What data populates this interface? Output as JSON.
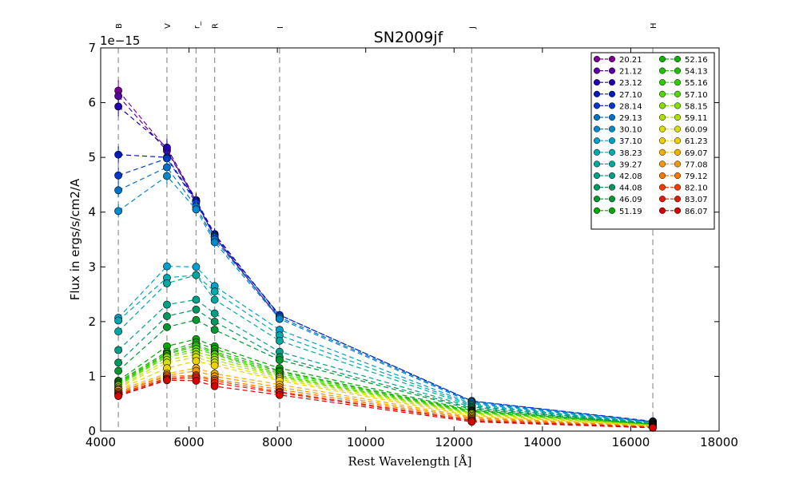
{
  "chart_data": {
    "type": "line",
    "title": "SN2009jf",
    "xlabel": "Rest Wavelength [Å]",
    "ylabel": "Flux in ergs/s/cm2/A",
    "y_scale_label": "1e−15",
    "xlim": [
      4000,
      18000
    ],
    "ylim": [
      0,
      7
    ],
    "xticks": [
      "4000",
      "6000",
      "8000",
      "10000",
      "12000",
      "14000",
      "16000",
      "18000"
    ],
    "yticks": [
      "0",
      "1",
      "2",
      "3",
      "4",
      "5",
      "6",
      "7"
    ],
    "bands": [
      {
        "name": "B",
        "wavelength": 4400
      },
      {
        "name": "V",
        "wavelength": 5500
      },
      {
        "name": "r_",
        "wavelength": 6160
      },
      {
        "name": "R",
        "wavelength": 6580
      },
      {
        "name": "I",
        "wavelength": 8050
      },
      {
        "name": "J",
        "wavelength": 12400
      },
      {
        "name": "H",
        "wavelength": 16500
      }
    ],
    "x": [
      4400,
      5500,
      6160,
      6580,
      8050,
      12400,
      16500
    ],
    "series": [
      {
        "name": "20.21",
        "color": "#7a0090",
        "values": [
          6.22,
          5.15,
          4.2,
          3.55,
          2.05,
          null,
          null
        ]
      },
      {
        "name": "21.12",
        "color": "#5a00a0",
        "values": [
          6.12,
          5.12,
          4.2,
          3.55,
          2.05,
          null,
          null
        ]
      },
      {
        "name": "23.12",
        "color": "#2200b0",
        "values": [
          5.93,
          5.18,
          4.22,
          3.6,
          2.1,
          null,
          null
        ]
      },
      {
        "name": "27.10",
        "color": "#0018c0",
        "values": [
          5.05,
          5.0,
          4.2,
          3.58,
          2.12,
          0.55,
          0.18
        ]
      },
      {
        "name": "28.14",
        "color": "#0038cc",
        "values": [
          4.67,
          4.98,
          4.17,
          3.55,
          2.12,
          0.55,
          0.17
        ]
      },
      {
        "name": "29.13",
        "color": "#0070c8",
        "values": [
          4.4,
          4.82,
          4.1,
          3.5,
          2.08,
          0.54,
          0.17
        ]
      },
      {
        "name": "30.10",
        "color": "#0088cc",
        "values": [
          4.02,
          4.66,
          4.05,
          3.45,
          2.05,
          0.52,
          0.16
        ]
      },
      {
        "name": "37.10",
        "color": "#00a0cc",
        "values": [
          2.07,
          3.01,
          3.0,
          2.65,
          1.85,
          0.5,
          0.15
        ]
      },
      {
        "name": "38.23",
        "color": "#00a8b0",
        "values": [
          2.02,
          2.8,
          2.85,
          2.55,
          1.75,
          0.48,
          0.15
        ]
      },
      {
        "name": "39.27",
        "color": "#00a8a0",
        "values": [
          1.82,
          2.7,
          2.85,
          2.4,
          1.65,
          0.46,
          0.14
        ]
      },
      {
        "name": "42.08",
        "color": "#00a088",
        "values": [
          1.48,
          2.31,
          2.4,
          2.15,
          1.45,
          0.44,
          0.14
        ]
      },
      {
        "name": "44.08",
        "color": "#009860",
        "values": [
          1.25,
          2.1,
          2.22,
          2.0,
          1.35,
          0.42,
          0.13
        ]
      },
      {
        "name": "46.09",
        "color": "#009830",
        "values": [
          1.1,
          1.9,
          2.03,
          1.85,
          1.3,
          0.4,
          0.13
        ]
      },
      {
        "name": "51.19",
        "color": "#00a800",
        "values": [
          0.92,
          1.55,
          1.68,
          1.55,
          1.15,
          0.38,
          0.12
        ]
      },
      {
        "name": "52.16",
        "color": "#10b400",
        "values": [
          0.9,
          1.45,
          1.62,
          1.5,
          1.1,
          0.37,
          0.12
        ]
      },
      {
        "name": "54.13",
        "color": "#20c000",
        "values": [
          0.88,
          1.42,
          1.58,
          1.45,
          1.08,
          0.36,
          0.12
        ]
      },
      {
        "name": "55.16",
        "color": "#30cc00",
        "values": [
          0.86,
          1.4,
          1.55,
          1.42,
          1.05,
          0.35,
          0.11
        ]
      },
      {
        "name": "57.10",
        "color": "#50d800",
        "values": [
          0.85,
          1.37,
          1.5,
          1.4,
          1.02,
          0.34,
          0.11
        ]
      },
      {
        "name": "58.15",
        "color": "#80e000",
        "values": [
          0.83,
          1.35,
          1.45,
          1.35,
          1.0,
          0.33,
          0.11
        ]
      },
      {
        "name": "59.11",
        "color": "#b0e000",
        "values": [
          0.8,
          1.3,
          1.4,
          1.3,
          0.98,
          0.32,
          0.1
        ]
      },
      {
        "name": "60.09",
        "color": "#d8e000",
        "values": [
          0.78,
          1.25,
          1.35,
          1.25,
          0.95,
          0.3,
          0.1
        ]
      },
      {
        "name": "61.23",
        "color": "#f0d000",
        "values": [
          0.76,
          1.15,
          1.28,
          1.2,
          0.92,
          0.28,
          0.1
        ]
      },
      {
        "name": "69.07",
        "color": "#f8b000",
        "values": [
          0.75,
          1.05,
          1.15,
          1.05,
          0.85,
          0.26,
          0.09
        ]
      },
      {
        "name": "77.08",
        "color": "#f89800",
        "values": [
          0.72,
          1.02,
          1.1,
          1.0,
          0.8,
          0.24,
          0.08
        ]
      },
      {
        "name": "79.12",
        "color": "#f87800",
        "values": [
          0.7,
          1.0,
          1.02,
          0.95,
          0.76,
          0.22,
          0.08
        ]
      },
      {
        "name": "82.10",
        "color": "#f04000",
        "values": [
          0.68,
          0.97,
          1.0,
          0.92,
          0.72,
          0.2,
          0.07
        ]
      },
      {
        "name": "83.07",
        "color": "#e81800",
        "values": [
          0.66,
          0.95,
          0.97,
          0.88,
          0.7,
          0.19,
          0.07
        ]
      },
      {
        "name": "86.07",
        "color": "#d80000",
        "values": [
          0.64,
          0.93,
          0.92,
          0.82,
          0.66,
          0.17,
          0.06
        ]
      }
    ]
  }
}
